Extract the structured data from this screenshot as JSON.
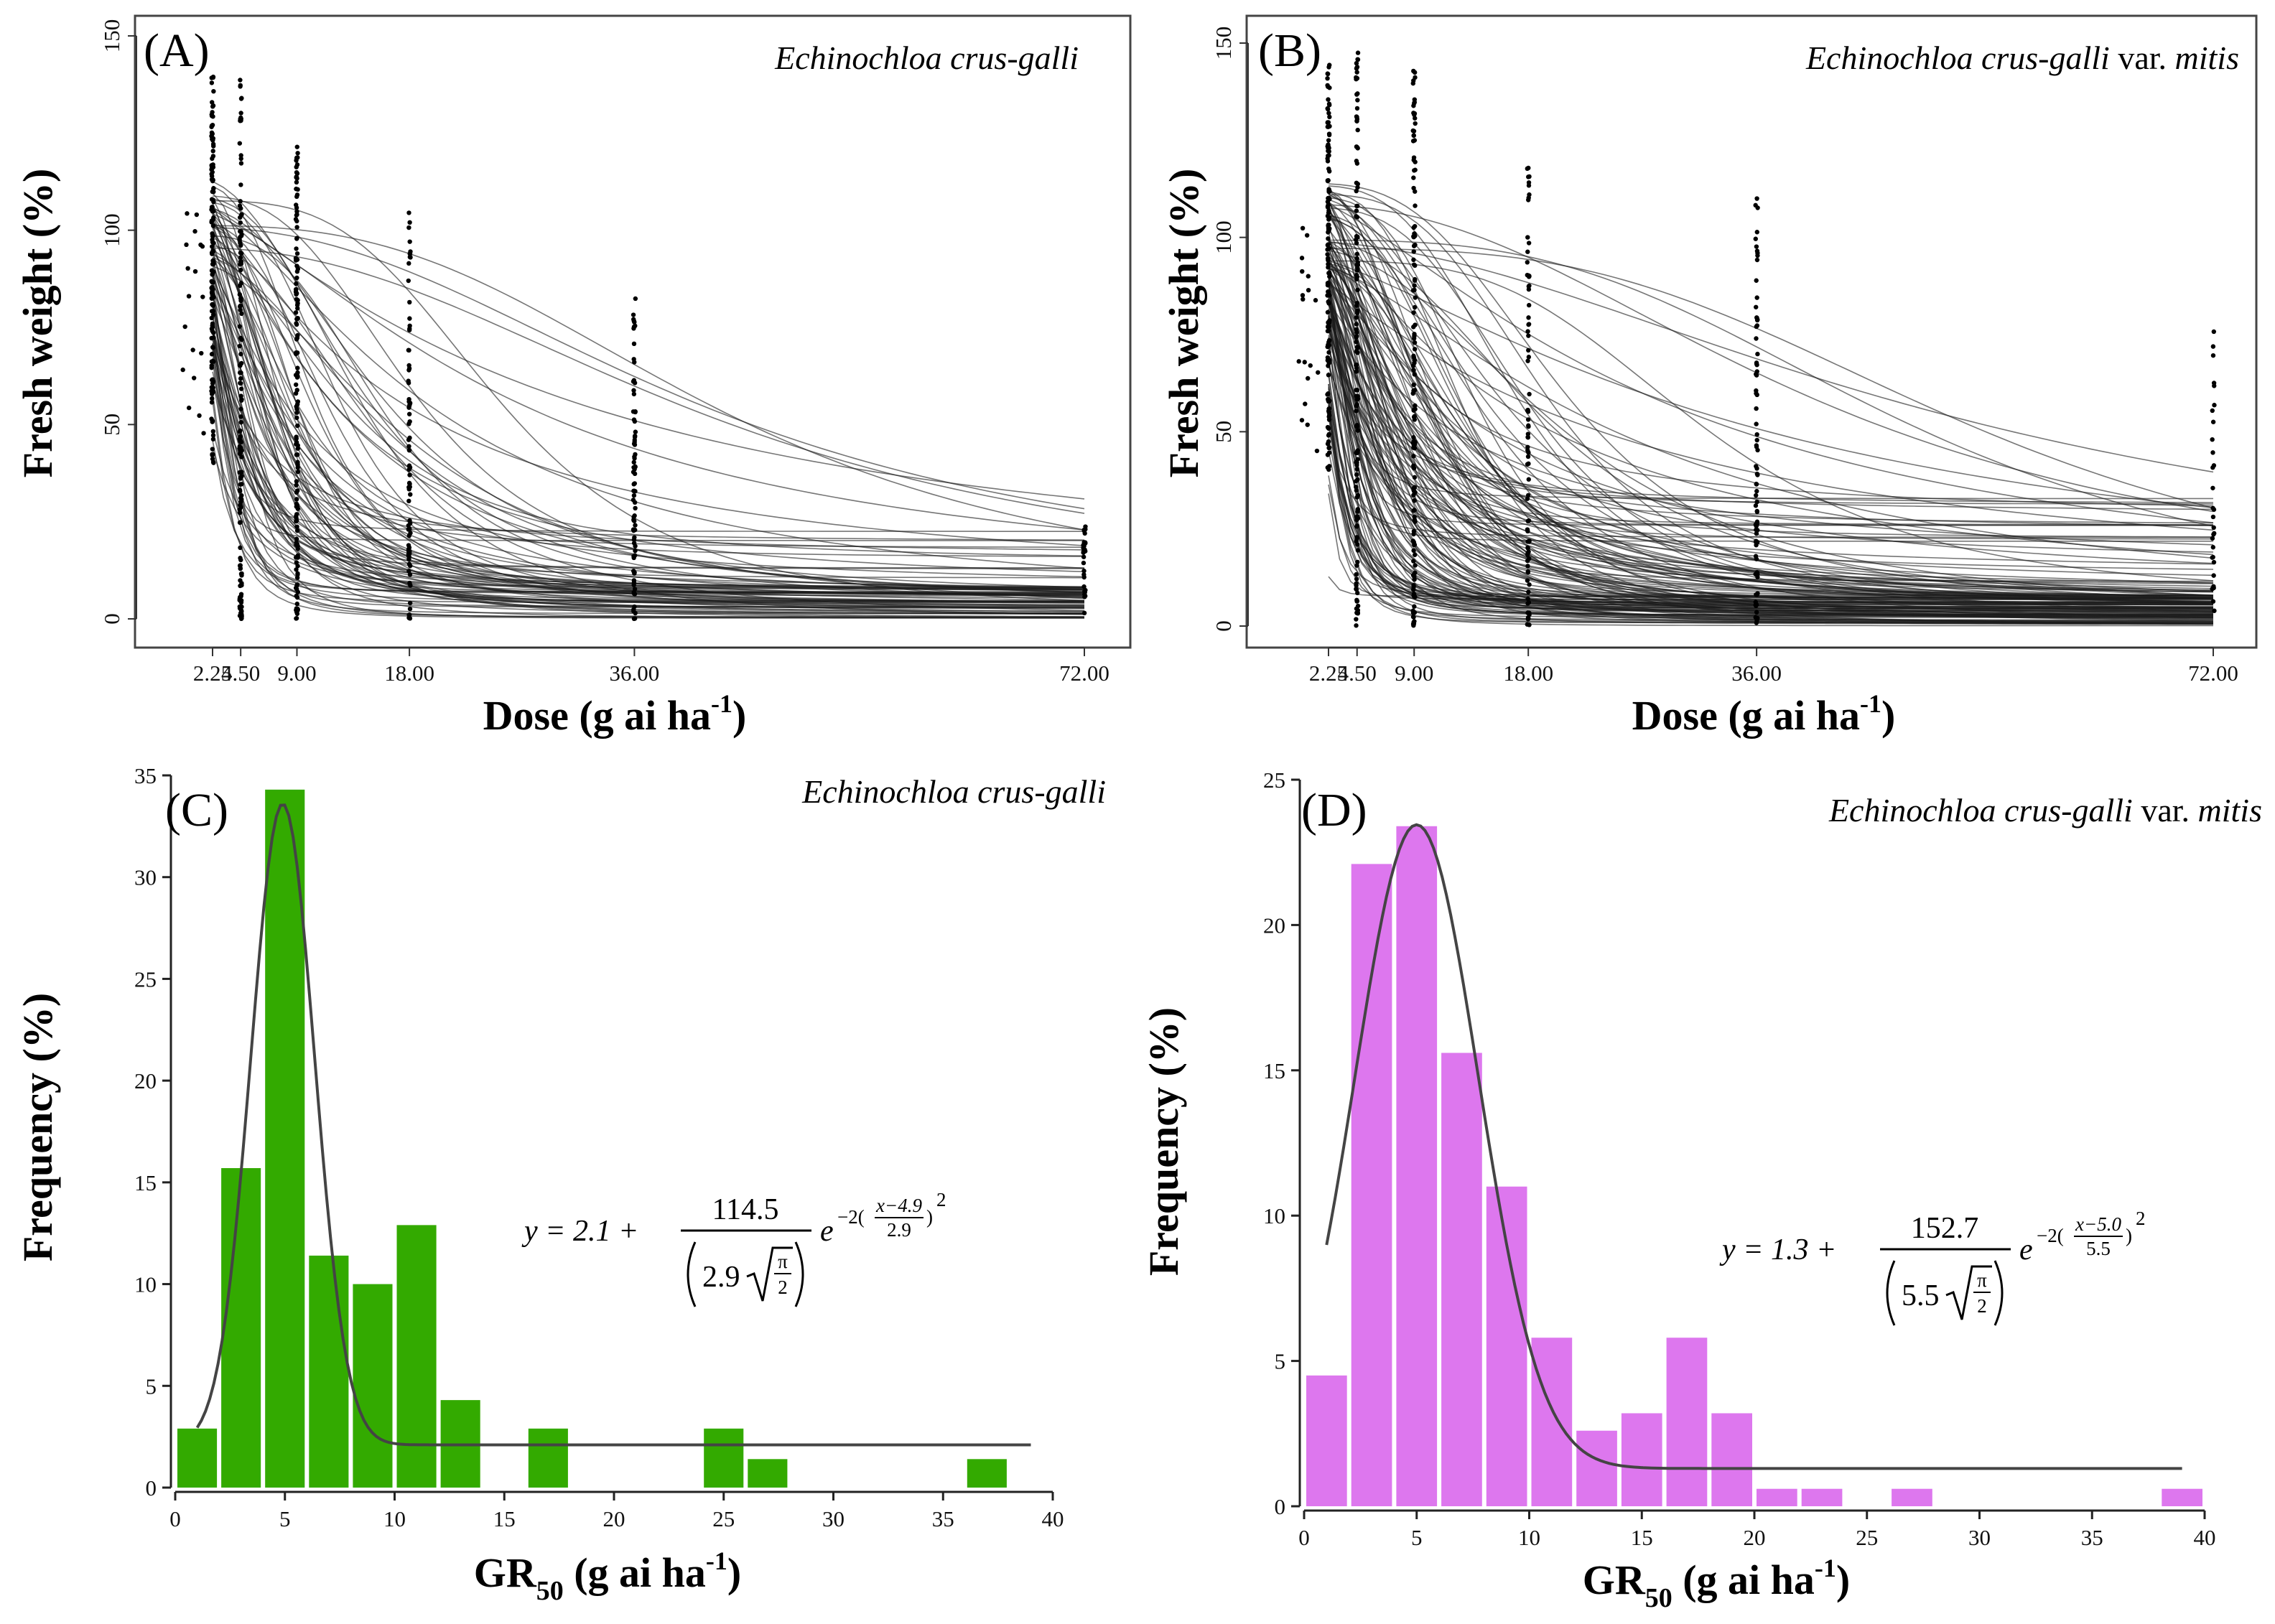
{
  "chart_data": [
    {
      "panel": "A",
      "type": "line",
      "panel_label": "(A)",
      "species": "Echinochloa crus-galli",
      "species_suffix": "",
      "xlabel": "Dose (g ai ha",
      "xlabel_sup": "-1",
      "xlabel_close": ")",
      "ylabel": "Fresh weight (%)",
      "x_ticks": [
        "2.25",
        "4.50",
        "9.00",
        "18.00",
        "36.00",
        "72.00"
      ],
      "x_tick_values": [
        2.25,
        4.5,
        9,
        18,
        36,
        72
      ],
      "y_ticks": [
        "0",
        "50",
        "100",
        "150"
      ],
      "y_tick_values": [
        0,
        50,
        100,
        150
      ],
      "ylim": [
        0,
        150
      ],
      "doses_g_ai_ha": [
        2.25,
        4.5,
        9,
        18,
        36,
        72
      ],
      "n_curves": 90,
      "gr50_median": 4.9,
      "curve_floor_range": [
        0,
        26
      ],
      "point_max_by_dose": [
        140,
        140,
        122,
        107,
        83,
        24
      ]
    },
    {
      "panel": "B",
      "type": "line",
      "panel_label": "(B)",
      "species": "Echinochloa crus-galli",
      "species_suffix": " var. ",
      "species_suffix_italic": "mitis",
      "xlabel": "Dose (g ai ha",
      "xlabel_sup": "-1",
      "xlabel_close": ")",
      "ylabel": "Fresh weight (%)",
      "x_ticks": [
        "2.25",
        "4.50",
        "9.00",
        "18.00",
        "36.00",
        "72.00"
      ],
      "x_tick_values": [
        2.25,
        4.5,
        9,
        18,
        36,
        72
      ],
      "y_ticks": [
        "0",
        "50",
        "100",
        "150"
      ],
      "y_tick_values": [
        0,
        50,
        100,
        150
      ],
      "ylim": [
        0,
        150
      ],
      "doses_g_ai_ha": [
        2.25,
        4.5,
        9,
        18,
        36,
        72
      ],
      "n_curves": 150,
      "gr50_median": 5.0,
      "curve_floor_range": [
        0,
        33
      ],
      "point_max_by_dose": [
        145,
        148,
        143,
        119,
        110,
        77
      ]
    },
    {
      "panel": "C",
      "type": "bar",
      "panel_label": "(C)",
      "species": "Echinochloa crus-galli",
      "species_suffix": "",
      "xlabel": "GR",
      "xlabel_sub": "50",
      "xlabel_rest": " (g ai ha",
      "xlabel_sup": "-1",
      "xlabel_close": ")",
      "ylabel": "Frequency (%)",
      "x_ticks": [
        "0",
        "5",
        "10",
        "15",
        "20",
        "25",
        "30",
        "35",
        "40"
      ],
      "y_ticks": [
        "0",
        "5",
        "10",
        "15",
        "20",
        "25",
        "30",
        "35"
      ],
      "xlim": [
        0,
        40
      ],
      "ylim": [
        0,
        35
      ],
      "bin_width": 2,
      "bin_starts": [
        0,
        2,
        4,
        6,
        8,
        10,
        12,
        16,
        24,
        26,
        36
      ],
      "values": [
        2.9,
        15.7,
        34.3,
        11.4,
        10.0,
        12.9,
        4.3,
        2.9,
        2.9,
        1.4,
        1.4
      ],
      "bar_color": "#33aa00",
      "fit": {
        "a": 2.1,
        "b": 114.5,
        "xc": 4.9,
        "w": 2.9,
        "x_range": [
          1,
          39
        ]
      },
      "equation": {
        "lhs": "y = 2.1 +",
        "num": "114.5",
        "den_w": "2.9",
        "pi": "π",
        "two": "2",
        "exp_e": "e",
        "exp_text": "−2(",
        "exp_num": "x−4.9",
        "exp_den": "2.9",
        "exp_close": ")",
        "exp_pow": "2"
      }
    },
    {
      "panel": "D",
      "type": "bar",
      "panel_label": "(D)",
      "species": "Echinochloa crus-galli",
      "species_suffix": " var. ",
      "species_suffix_italic": "mitis",
      "xlabel": "GR",
      "xlabel_sub": "50",
      "xlabel_rest": " (g ai ha",
      "xlabel_sup": "-1",
      "xlabel_close": ")",
      "ylabel": "Frequency (%)",
      "x_ticks": [
        "0",
        "5",
        "10",
        "15",
        "20",
        "25",
        "30",
        "35",
        "40"
      ],
      "y_ticks": [
        "0",
        "5",
        "10",
        "15",
        "20",
        "25"
      ],
      "xlim": [
        0,
        40
      ],
      "ylim": [
        0,
        25
      ],
      "bin_width": 2,
      "bin_starts": [
        0,
        2,
        4,
        6,
        8,
        10,
        12,
        14,
        16,
        18,
        20,
        22,
        26,
        38
      ],
      "values": [
        4.5,
        22.1,
        23.4,
        15.6,
        11.0,
        5.8,
        2.6,
        3.2,
        5.8,
        3.2,
        0.6,
        0.6,
        0.6,
        0.6
      ],
      "bar_color": "#dd77ee",
      "fit": {
        "a": 1.3,
        "b": 152.7,
        "xc": 5.0,
        "w": 5.5,
        "x_range": [
          1,
          39
        ]
      },
      "equation": {
        "lhs": "y = 1.3 +",
        "num": "152.7",
        "den_w": "5.5",
        "pi": "π",
        "two": "2",
        "exp_e": "e",
        "exp_text": "−2(",
        "exp_num": "x−5.0",
        "exp_den": "5.5",
        "exp_close": ")",
        "exp_pow": "2"
      }
    }
  ]
}
